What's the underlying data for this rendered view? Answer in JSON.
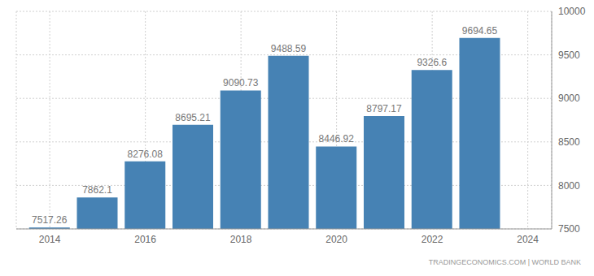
{
  "chart_data": {
    "type": "bar",
    "source": "TRADINGECONOMICS.COM | WORLD BANK",
    "x": [
      2014,
      2015,
      2016,
      2017,
      2018,
      2019,
      2020,
      2021,
      2022,
      2023
    ],
    "values": [
      7517.26,
      7862.1,
      8276.08,
      8695.21,
      9090.73,
      9488.59,
      8446.92,
      8797.17,
      9326.6,
      9694.65
    ],
    "color": "#4682b4",
    "xlim": [
      2013.3,
      2024.5
    ],
    "xticks": [
      2014,
      2016,
      2018,
      2020,
      2022,
      2024
    ],
    "ylim": [
      7500,
      10000
    ],
    "yticks": [
      7500,
      8000,
      8500,
      9000,
      9500,
      10000
    ],
    "grid": true,
    "data_labels": true
  }
}
